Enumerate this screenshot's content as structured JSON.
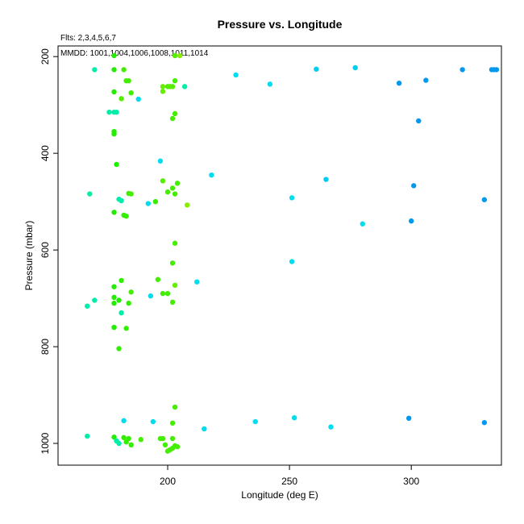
{
  "chart_data": {
    "type": "scatter",
    "title": "Pressure vs. Longitude",
    "xlabel": "Longitude (deg E)",
    "ylabel": "Pressure (mbar)",
    "annotations": [
      "Flts: 2,3,4,5,6,7",
      "MMDD: 1001,1004,1006,1008,1011,1014"
    ],
    "xlim": [
      155,
      337
    ],
    "ylim": [
      1045,
      178
    ],
    "y_reversed": true,
    "xticks": [
      200,
      250,
      300
    ],
    "yticks": [
      200,
      400,
      600,
      800,
      1000
    ],
    "grid": false,
    "legend": "none",
    "points": [
      [
        178,
        198,
        "#22ee00"
      ],
      [
        205,
        198,
        "#88ee00"
      ],
      [
        203,
        198,
        "#55ee00"
      ],
      [
        170,
        227,
        "#00eeaa"
      ],
      [
        178,
        227,
        "#22ee00"
      ],
      [
        182,
        227,
        "#44ee00"
      ],
      [
        228,
        238,
        "#00ddee"
      ],
      [
        261,
        226,
        "#00ccee"
      ],
      [
        277,
        223,
        "#00ccee"
      ],
      [
        321,
        227,
        "#0099ee"
      ],
      [
        333,
        227,
        "#0099ee"
      ],
      [
        334,
        227,
        "#0099ee"
      ],
      [
        335,
        227,
        "#0099ee"
      ],
      [
        306,
        249,
        "#0099ee"
      ],
      [
        295,
        255,
        "#0099ee"
      ],
      [
        242,
        257,
        "#00ddee"
      ],
      [
        183,
        250,
        "#44ee00"
      ],
      [
        184,
        250,
        "#44ee00"
      ],
      [
        203,
        250,
        "#44ee00"
      ],
      [
        198,
        262,
        "#66ee00"
      ],
      [
        200,
        262,
        "#55ee00"
      ],
      [
        201,
        262,
        "#55ee00"
      ],
      [
        202,
        262,
        "#55ee00"
      ],
      [
        207,
        262,
        "#00eeaa"
      ],
      [
        178,
        273,
        "#22ee00"
      ],
      [
        185,
        275,
        "#44ee00"
      ],
      [
        198,
        272,
        "#66ee00"
      ],
      [
        181,
        287,
        "#55ee00"
      ],
      [
        188,
        288,
        "#00ddee"
      ],
      [
        176,
        315,
        "#00eeaa"
      ],
      [
        178,
        315,
        "#00eeaa"
      ],
      [
        179,
        315,
        "#00eeaa"
      ],
      [
        203,
        318,
        "#44ee00"
      ],
      [
        202,
        328,
        "#44ee00"
      ],
      [
        303,
        333,
        "#0099ee"
      ],
      [
        178,
        355,
        "#22ee00"
      ],
      [
        178,
        360,
        "#22ee00"
      ],
      [
        197,
        416,
        "#00ddee"
      ],
      [
        179,
        423,
        "#22ee00"
      ],
      [
        218,
        445,
        "#00ddee"
      ],
      [
        265,
        454,
        "#00ccee"
      ],
      [
        198,
        457,
        "#55ee00"
      ],
      [
        204,
        462,
        "#44ee00"
      ],
      [
        301,
        467,
        "#0099ee"
      ],
      [
        202,
        472,
        "#44ee00"
      ],
      [
        200,
        480,
        "#44ee00"
      ],
      [
        203,
        484,
        "#44ee00"
      ],
      [
        168,
        484,
        "#00eeaa"
      ],
      [
        184,
        483,
        "#44ee00"
      ],
      [
        185,
        484,
        "#44ee00"
      ],
      [
        251,
        492,
        "#00ddee"
      ],
      [
        180,
        495,
        "#00eeaa"
      ],
      [
        181,
        498,
        "#00eeaa"
      ],
      [
        330,
        496,
        "#0099ee"
      ],
      [
        195,
        500,
        "#33ee00"
      ],
      [
        192,
        504,
        "#00ddee"
      ],
      [
        208,
        507,
        "#88ee00"
      ],
      [
        178,
        522,
        "#22ee00"
      ],
      [
        182,
        528,
        "#33ee00"
      ],
      [
        183,
        530,
        "#33ee00"
      ],
      [
        300,
        540,
        "#0099ee"
      ],
      [
        280,
        546,
        "#00ddee"
      ],
      [
        203,
        586,
        "#44ee00"
      ],
      [
        251,
        624,
        "#00ddee"
      ],
      [
        202,
        627,
        "#44ee00"
      ],
      [
        196,
        661,
        "#44ee00"
      ],
      [
        181,
        663,
        "#33ee00"
      ],
      [
        212,
        666,
        "#00ddee"
      ],
      [
        203,
        673,
        "#66ee00"
      ],
      [
        178,
        676,
        "#22ee00"
      ],
      [
        185,
        687,
        "#44ee00"
      ],
      [
        198,
        690,
        "#44ee00"
      ],
      [
        200,
        690,
        "#44ee00"
      ],
      [
        193,
        695,
        "#00ddee"
      ],
      [
        178,
        698,
        "#22ee00"
      ],
      [
        170,
        704,
        "#00eeaa"
      ],
      [
        180,
        704,
        "#22ee00"
      ],
      [
        178,
        710,
        "#22ee00"
      ],
      [
        184,
        710,
        "#33ee00"
      ],
      [
        202,
        708,
        "#44ee00"
      ],
      [
        167,
        716,
        "#00eeaa"
      ],
      [
        181,
        730,
        "#00eeaa"
      ],
      [
        178,
        760,
        "#22ee00"
      ],
      [
        183,
        762,
        "#33ee00"
      ],
      [
        180,
        804,
        "#33ee00"
      ],
      [
        203,
        925,
        "#44ee00"
      ],
      [
        252,
        947,
        "#00ddee"
      ],
      [
        299,
        948,
        "#0099ee"
      ],
      [
        182,
        953,
        "#00ddee"
      ],
      [
        194,
        955,
        "#00ddee"
      ],
      [
        236,
        955,
        "#00ddee"
      ],
      [
        330,
        957,
        "#0099ee"
      ],
      [
        202,
        958,
        "#44ee00"
      ],
      [
        267,
        966,
        "#00ddee"
      ],
      [
        215,
        970,
        "#00ddee"
      ],
      [
        167,
        985,
        "#00eeaa"
      ],
      [
        178,
        987,
        "#22ee00"
      ],
      [
        182,
        988,
        "#33ee00"
      ],
      [
        184,
        990,
        "#33ee00"
      ],
      [
        197,
        990,
        "#44ee00"
      ],
      [
        198,
        990,
        "#44ee00"
      ],
      [
        202,
        990,
        "#44ee00"
      ],
      [
        189,
        992,
        "#44ee00"
      ],
      [
        179,
        995,
        "#00eeaa"
      ],
      [
        180,
        1000,
        "#00eeaa"
      ],
      [
        183,
        997,
        "#33ee00"
      ],
      [
        185,
        1003,
        "#33ee00"
      ],
      [
        199,
        1003,
        "#44ee00"
      ],
      [
        203,
        1005,
        "#44ee00"
      ],
      [
        204,
        1007,
        "#44ee00"
      ],
      [
        202,
        1010,
        "#44ee00"
      ],
      [
        201,
        1013,
        "#44ee00"
      ],
      [
        200,
        1016,
        "#44ee00"
      ]
    ]
  }
}
